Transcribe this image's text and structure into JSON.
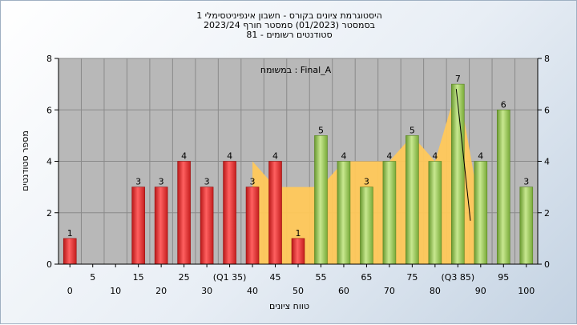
{
  "chart_data": {
    "type": "bar",
    "title_lines": [
      "היסטוגרמת ציונים בקורס - חשבון אינפיניטסימלי 1",
      "בסמסטר  (01/2023)  סמסטר חורף 2023/24",
      "סטודנטים רשומים - 81"
    ],
    "annotation": "במשוּמח : Final_A",
    "xlabel": "טווח ציונים",
    "ylabel": "מספר סטודנטים",
    "ylim": [
      0,
      8
    ],
    "y_ticks": [
      0,
      2,
      4,
      6,
      8
    ],
    "categories": [
      "0",
      "5",
      "10",
      "15",
      "20",
      "25",
      "30",
      "35",
      "40",
      "45",
      "50",
      "55",
      "60",
      "65",
      "70",
      "75",
      "80",
      "85",
      "90",
      "95",
      "100"
    ],
    "category_labels": [
      "0",
      "5",
      "10",
      "15",
      "20",
      "25",
      "30",
      "(Q1 35)",
      "40",
      "45",
      "50",
      "55",
      "60",
      "65",
      "70",
      "75",
      "80",
      "(Q3 85)",
      "90",
      "95",
      "100"
    ],
    "values": [
      1,
      0,
      0,
      3,
      3,
      4,
      3,
      4,
      3,
      4,
      1,
      5,
      4,
      3,
      4,
      5,
      4,
      7,
      4,
      6,
      3
    ],
    "pass_threshold": 55,
    "grid": true,
    "colors": {
      "fail_bar": "#e03030",
      "pass_bar": "#8cc04a",
      "background_area": "#ffc85a",
      "plot_bg": "#b8b8b8",
      "line": "#000000"
    },
    "background_area_values": [
      null,
      null,
      null,
      null,
      null,
      null,
      null,
      null,
      4,
      3,
      3,
      3,
      4,
      4,
      4,
      5,
      4,
      7,
      2,
      null,
      null
    ]
  }
}
